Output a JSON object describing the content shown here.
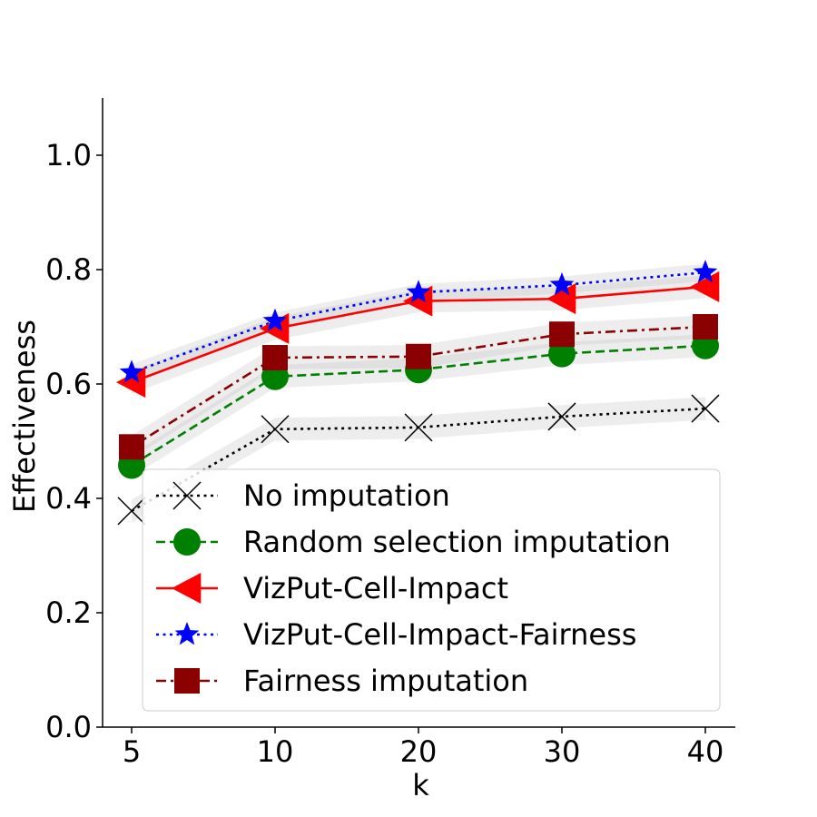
{
  "chart_data": {
    "type": "line",
    "title": "",
    "xlabel": "k",
    "ylabel": "Effectiveness",
    "categories": [
      "5",
      "10",
      "20",
      "30",
      "40"
    ],
    "ylim": [
      0,
      1.1
    ],
    "yticks": [
      0.0,
      0.2,
      0.4,
      0.6,
      0.8,
      1.0
    ],
    "ytick_labels": [
      "0.0",
      "0.2",
      "0.4",
      "0.6",
      "0.8",
      "1.0"
    ],
    "grid": false,
    "legend_position": "bottom-right",
    "series": [
      {
        "name": "No imputation",
        "values": [
          0.378,
          0.521,
          0.524,
          0.543,
          0.557
        ],
        "band": 0.02,
        "color": "#000000",
        "dash": "dotted",
        "marker": "x"
      },
      {
        "name": "Random selection imputation",
        "values": [
          0.458,
          0.613,
          0.625,
          0.653,
          0.667
        ],
        "band": 0.02,
        "color": "#008000",
        "dash": "dashed",
        "marker": "circle"
      },
      {
        "name": "VizPut-Cell-Impact",
        "values": [
          0.603,
          0.697,
          0.745,
          0.749,
          0.77
        ],
        "band": 0.02,
        "color": "#ff0000",
        "dash": "solid",
        "marker": "triangle-left"
      },
      {
        "name": "VizPut-Cell-Impact-Fairness",
        "values": [
          0.62,
          0.71,
          0.76,
          0.773,
          0.795
        ],
        "band": 0.015,
        "color": "#0000ff",
        "dash": "dotted",
        "marker": "star"
      },
      {
        "name": "Fairness imputation",
        "values": [
          0.49,
          0.646,
          0.648,
          0.687,
          0.7
        ],
        "band": 0.02,
        "color": "#8b0000",
        "dash": "dashdot",
        "marker": "square"
      }
    ]
  }
}
